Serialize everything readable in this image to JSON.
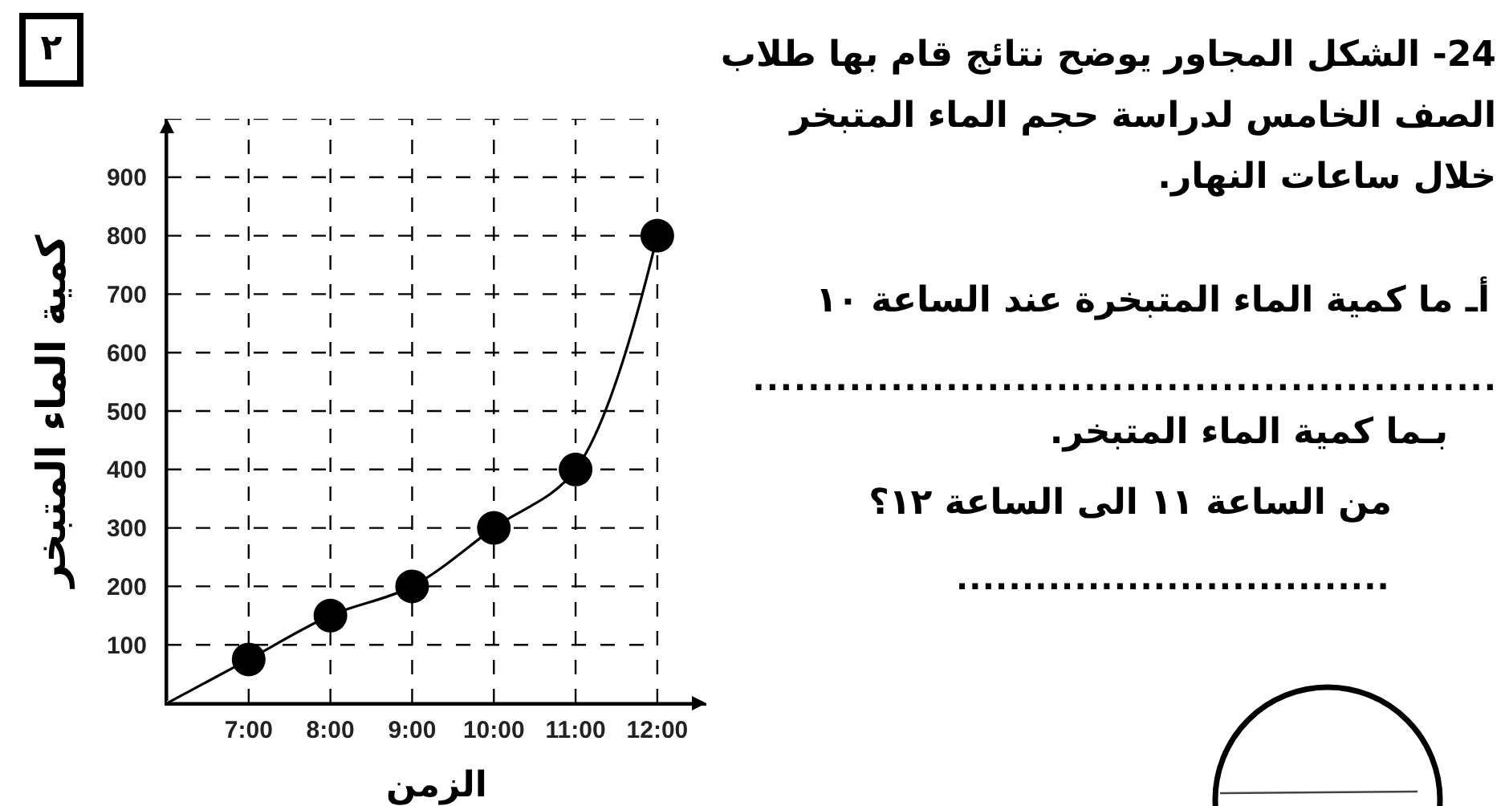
{
  "chart_data": {
    "type": "line",
    "xlabel": "الزمن",
    "ylabel": "كمية الماء المتبخر",
    "series": [
      {
        "x": [
          6,
          7,
          8,
          9,
          10,
          11,
          12
        ],
        "values": [
          0,
          75,
          150,
          200,
          300,
          400,
          800
        ],
        "color": "#000000",
        "marker": "none",
        "line_style": "solid"
      },
      {
        "type": "scatter",
        "x": [
          7,
          8,
          9,
          10,
          11,
          12
        ],
        "values": [
          75,
          150,
          200,
          300,
          400,
          800
        ],
        "color": "#000000",
        "marker": "circle"
      }
    ],
    "xlim": [
      6,
      12.6
    ],
    "ylim": [
      0,
      1000
    ],
    "xticks": [
      {
        "value": 7,
        "label": "7:00"
      },
      {
        "value": 8,
        "label": "8:00"
      },
      {
        "value": 9,
        "label": "9:00"
      },
      {
        "value": 10,
        "label": "10:00"
      },
      {
        "value": 11,
        "label": "11:00"
      },
      {
        "value": 12,
        "label": "12:00"
      }
    ],
    "yticks": [
      100,
      200,
      300,
      400,
      500,
      600,
      700,
      800,
      900,
      {
        "value": 1000,
        "label": null
      }
    ],
    "grid": true,
    "annotations": [
      "٢",
      "24- الشكل المجاور يوضح نتائج قام بها طلاب\nالصف الخامس لدراسة حجم الماء المتبخر\nخلال ساعات النهار.",
      "أـ ما كمية الماء المتبخرة عند الساعة ١٠",
      "......................................................",
      "بـما كمية الماء المتبخر.",
      "من الساعة ١١ الى الساعة ١٢؟",
      "................................."
    ]
  }
}
